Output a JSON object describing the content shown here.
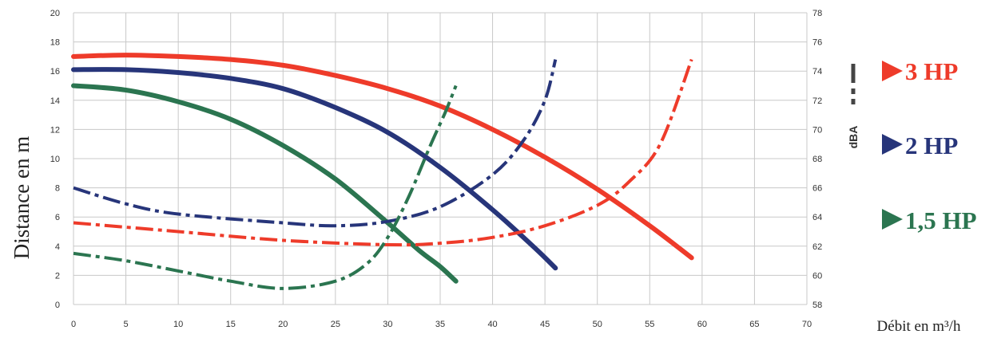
{
  "chart_data": {
    "type": "line",
    "title": "",
    "xlabel": "Débit en m³/h",
    "ylabel": "Distance en m",
    "y2label": "dBA",
    "xlim": [
      0,
      70
    ],
    "ylim": [
      0,
      20
    ],
    "y2lim": [
      58,
      78
    ],
    "xticks": [
      "0",
      "5",
      "10",
      "15",
      "20",
      "25",
      "30",
      "35",
      "40",
      "45",
      "50",
      "55",
      "60",
      "65",
      "70"
    ],
    "yticks": [
      "0",
      "2",
      "4",
      "6",
      "8",
      "10",
      "12",
      "14",
      "16",
      "18",
      "20"
    ],
    "y2ticks": [
      "58",
      "60",
      "62",
      "64",
      "66",
      "68",
      "70",
      "72",
      "74",
      "76",
      "78"
    ],
    "grid": true,
    "legend_position": "right",
    "colors": {
      "3hp": "#ee3b2a",
      "2hp": "#27357a",
      "1_5hp": "#2b7550"
    },
    "series": [
      {
        "name": "3 HP",
        "color": "#ee3b2a",
        "kind": "distance",
        "axis": "left",
        "x": [
          0,
          5,
          10,
          15,
          20,
          25,
          30,
          35,
          40,
          45,
          50,
          55,
          59
        ],
        "y": [
          17,
          17.1,
          17,
          16.8,
          16.4,
          15.7,
          14.8,
          13.6,
          12.0,
          10.1,
          7.9,
          5.4,
          3.2
        ]
      },
      {
        "name": "2 HP",
        "color": "#27357a",
        "kind": "distance",
        "axis": "left",
        "x": [
          0,
          5,
          10,
          15,
          20,
          25,
          30,
          35,
          40,
          44,
          46
        ],
        "y": [
          16.1,
          16.1,
          15.9,
          15.5,
          14.8,
          13.5,
          11.8,
          9.4,
          6.5,
          3.9,
          2.5
        ]
      },
      {
        "name": "1,5 HP",
        "color": "#2b7550",
        "kind": "distance",
        "axis": "left",
        "x": [
          0,
          5,
          10,
          15,
          20,
          25,
          30,
          33,
          35,
          36.5
        ],
        "y": [
          15,
          14.7,
          13.9,
          12.7,
          10.9,
          8.6,
          5.6,
          3.7,
          2.6,
          1.6
        ]
      },
      {
        "name": "3 HP",
        "color": "#ee3b2a",
        "kind": "noise",
        "axis": "right",
        "x": [
          0,
          10,
          20,
          30,
          35,
          40,
          45,
          50,
          53,
          56,
          59
        ],
        "y": [
          63.6,
          63.0,
          62.4,
          62.1,
          62.2,
          62.6,
          63.4,
          64.8,
          66.4,
          69.0,
          74.8
        ]
      },
      {
        "name": "2 HP",
        "color": "#27357a",
        "kind": "noise",
        "axis": "right",
        "x": [
          0,
          5,
          10,
          20,
          25,
          30,
          35,
          40,
          43,
          45,
          46
        ],
        "y": [
          66.0,
          64.9,
          64.2,
          63.6,
          63.4,
          63.7,
          64.7,
          66.9,
          69.3,
          72.0,
          74.8
        ]
      },
      {
        "name": "1,5 HP",
        "color": "#2b7550",
        "kind": "noise",
        "axis": "right",
        "x": [
          0,
          5,
          10,
          15,
          20,
          25,
          28,
          30,
          32,
          34,
          35.5,
          36.5
        ],
        "y": [
          61.5,
          61.0,
          60.3,
          59.6,
          59.1,
          59.6,
          60.8,
          62.6,
          65.4,
          68.8,
          71.2,
          73.0
        ]
      }
    ]
  },
  "legend": [
    {
      "label": "3 HP",
      "color": "#ee3b2a"
    },
    {
      "label": "2 HP",
      "color": "#27357a"
    },
    {
      "label": "1,5 HP",
      "color": "#2b7550"
    }
  ]
}
